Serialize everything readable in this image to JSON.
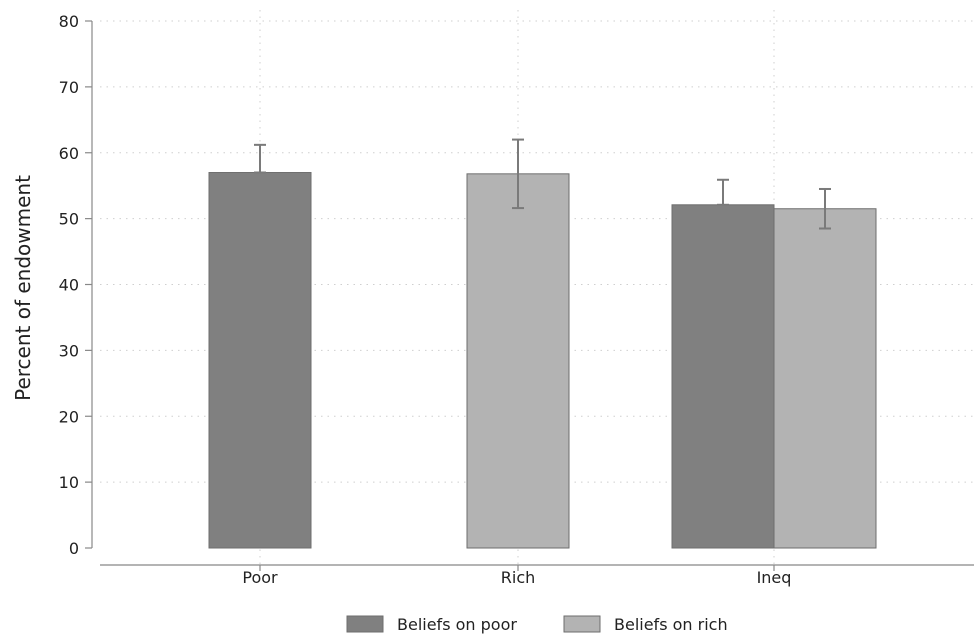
{
  "chart_data": {
    "type": "bar",
    "title": "",
    "xlabel": "",
    "ylabel": "Percent of endowment",
    "ylim": [
      0,
      80
    ],
    "yticks": [
      0,
      10,
      20,
      30,
      40,
      50,
      60,
      70,
      80
    ],
    "categories": [
      "Poor",
      "Rich",
      "Ineq"
    ],
    "grid": true,
    "legend_position": "bottom",
    "series": [
      {
        "name": "Beliefs on poor",
        "color": "#808080",
        "values": [
          57.0,
          null,
          52.1
        ],
        "error_low": [
          57.0,
          null,
          52.1
        ],
        "error_high": [
          61.2,
          null,
          55.9
        ]
      },
      {
        "name": "Beliefs on rich",
        "color": "#b3b3b3",
        "values": [
          null,
          56.8,
          51.5
        ],
        "error_low": [
          null,
          51.6,
          48.5
        ],
        "error_high": [
          null,
          62.0,
          54.5
        ]
      }
    ],
    "error_bar_color": "#7a7a7a"
  }
}
